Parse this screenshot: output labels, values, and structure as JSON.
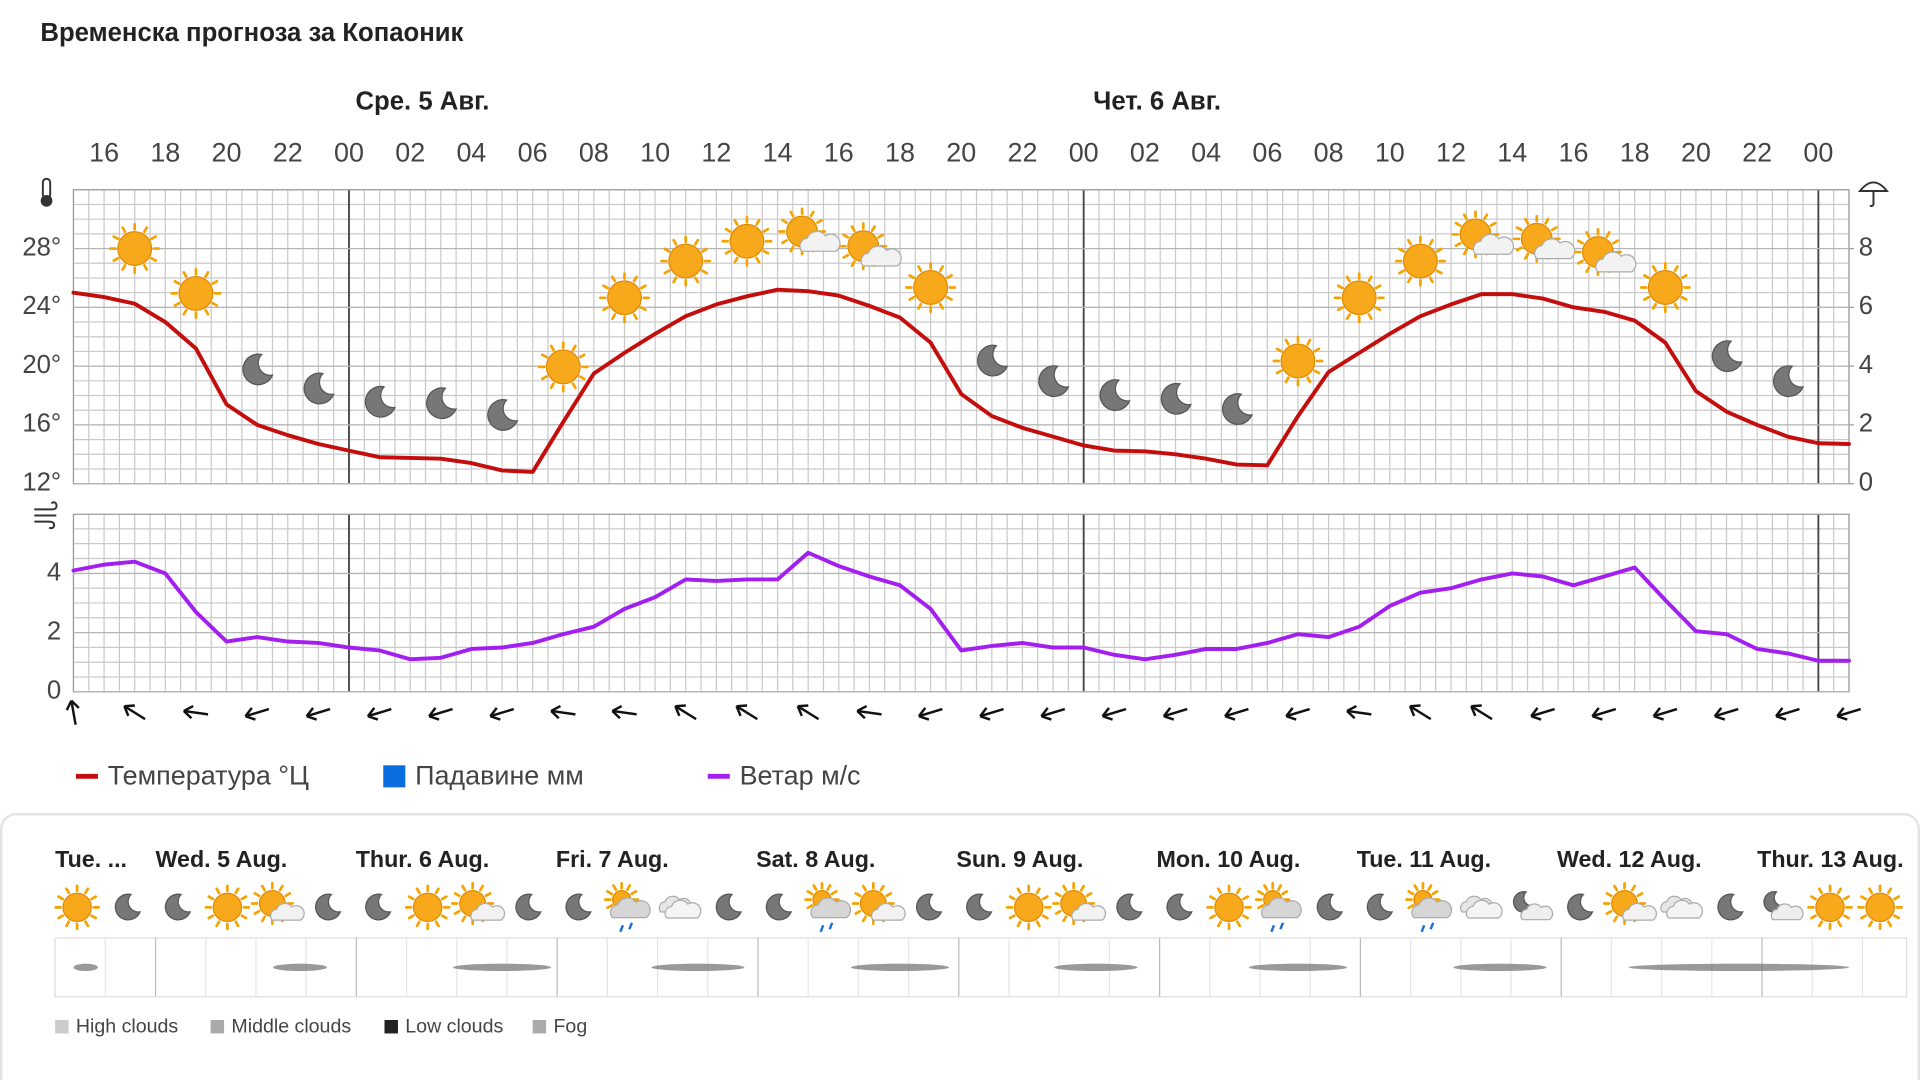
{
  "title": "Временска прогноза за Копаоник",
  "chart_data": [
    {
      "type": "line",
      "day_labels": [
        "Сре. 5 Авг.",
        "Чет. 6 Авг."
      ],
      "categories": [
        null,
        "16",
        null,
        "18",
        null,
        "20",
        null,
        "22",
        null,
        "00",
        null,
        "02",
        null,
        "04",
        null,
        "06",
        null,
        "08",
        null,
        "10",
        null,
        "12",
        null,
        "14",
        null,
        "16",
        null,
        "18",
        null,
        "20",
        null,
        "22",
        null,
        "00",
        null,
        "02",
        null,
        "04",
        null,
        "06",
        null,
        "08",
        null,
        "10",
        null,
        "12",
        null,
        "14",
        null,
        "16",
        null,
        "18",
        null,
        "20",
        null,
        "22",
        null,
        "00",
        null
      ],
      "series": [
        {
          "name": "Температура °Ц",
          "color": "#c40d0d",
          "values": [
            25,
            24.7,
            24.25,
            23,
            21.2,
            17.4,
            16,
            15.3,
            14.7,
            14.25,
            13.8,
            13.75,
            13.7,
            13.4,
            12.9,
            12.8,
            16.2,
            19.5,
            20.9,
            22.2,
            23.4,
            24.2,
            24.75,
            25.2,
            25.1,
            24.8,
            24.1,
            23.3,
            21.6,
            18.1,
            16.6,
            15.8,
            15.2,
            14.6,
            14.25,
            14.2,
            14,
            13.7,
            13.3,
            13.25,
            16.6,
            19.6,
            20.9,
            22.2,
            23.4,
            24.2,
            24.9,
            24.9,
            24.6,
            24,
            23.7,
            23.1,
            21.6,
            18.3,
            16.9,
            16,
            15.2,
            14.75,
            14.7
          ]
        },
        {
          "name": "Падавине мм",
          "color": "#0a6ee0",
          "type": "bar",
          "axis": "y2",
          "values": [
            0,
            0,
            0,
            0,
            0,
            0,
            0,
            0,
            0,
            0,
            0,
            0,
            0,
            0,
            0,
            0,
            0,
            0,
            0,
            0,
            0,
            0,
            0,
            0,
            0,
            0,
            0,
            0,
            0,
            0,
            0,
            0,
            0,
            0,
            0,
            0,
            0,
            0,
            0,
            0,
            0,
            0,
            0,
            0,
            0,
            0,
            0,
            0,
            0,
            0,
            0,
            0,
            0,
            0,
            0,
            0,
            0,
            0,
            0
          ]
        }
      ],
      "ylim": [
        12,
        32
      ],
      "yticks": [
        {
          "value": 12,
          "label": "12°"
        },
        {
          "value": 16,
          "label": "16°"
        },
        {
          "value": 20,
          "label": "20°"
        },
        {
          "value": 24,
          "label": "24°"
        },
        {
          "value": 28,
          "label": "28°"
        }
      ],
      "y2lim": [
        0,
        10
      ],
      "y2ticks": [
        0,
        2,
        4,
        6,
        8
      ],
      "grid": true
    },
    {
      "type": "line",
      "series": [
        {
          "name": "Ветар м/с",
          "color": "#a31ff0",
          "values": [
            4.1,
            4.3,
            4.4,
            4,
            2.7,
            1.7,
            1.85,
            1.7,
            1.65,
            1.5,
            1.4,
            1.1,
            1.15,
            1.45,
            1.5,
            1.65,
            1.95,
            2.2,
            2.8,
            3.2,
            3.8,
            3.75,
            3.8,
            3.8,
            4.7,
            4.25,
            3.9,
            3.6,
            2.8,
            1.4,
            1.55,
            1.65,
            1.5,
            1.5,
            1.25,
            1.1,
            1.25,
            1.45,
            1.45,
            1.65,
            1.95,
            1.85,
            2.2,
            2.9,
            3.35,
            3.5,
            3.8,
            4,
            3.9,
            3.6,
            3.9,
            4.2,
            3.1,
            2.05,
            1.95,
            1.45,
            1.3,
            1.05,
            1.05
          ]
        }
      ],
      "ylim": [
        0,
        6
      ],
      "yticks": [
        0,
        2,
        4
      ],
      "grid": true
    }
  ],
  "daily_strip": {
    "days": [
      "Tue. ...",
      "Wed. 5 Aug.",
      "Thur. 6 Aug.",
      "Fri. 7 Aug.",
      "Sat. 8 Aug.",
      "Sun. 9 Aug.",
      "Mon. 10 Aug.",
      "Tue. 11 Aug.",
      "Wed. 12 Aug.",
      "Thur. 13 Aug."
    ],
    "cloud_legend": [
      "High clouds",
      "Middle clouds",
      "Low clouds",
      "Fog"
    ]
  }
}
